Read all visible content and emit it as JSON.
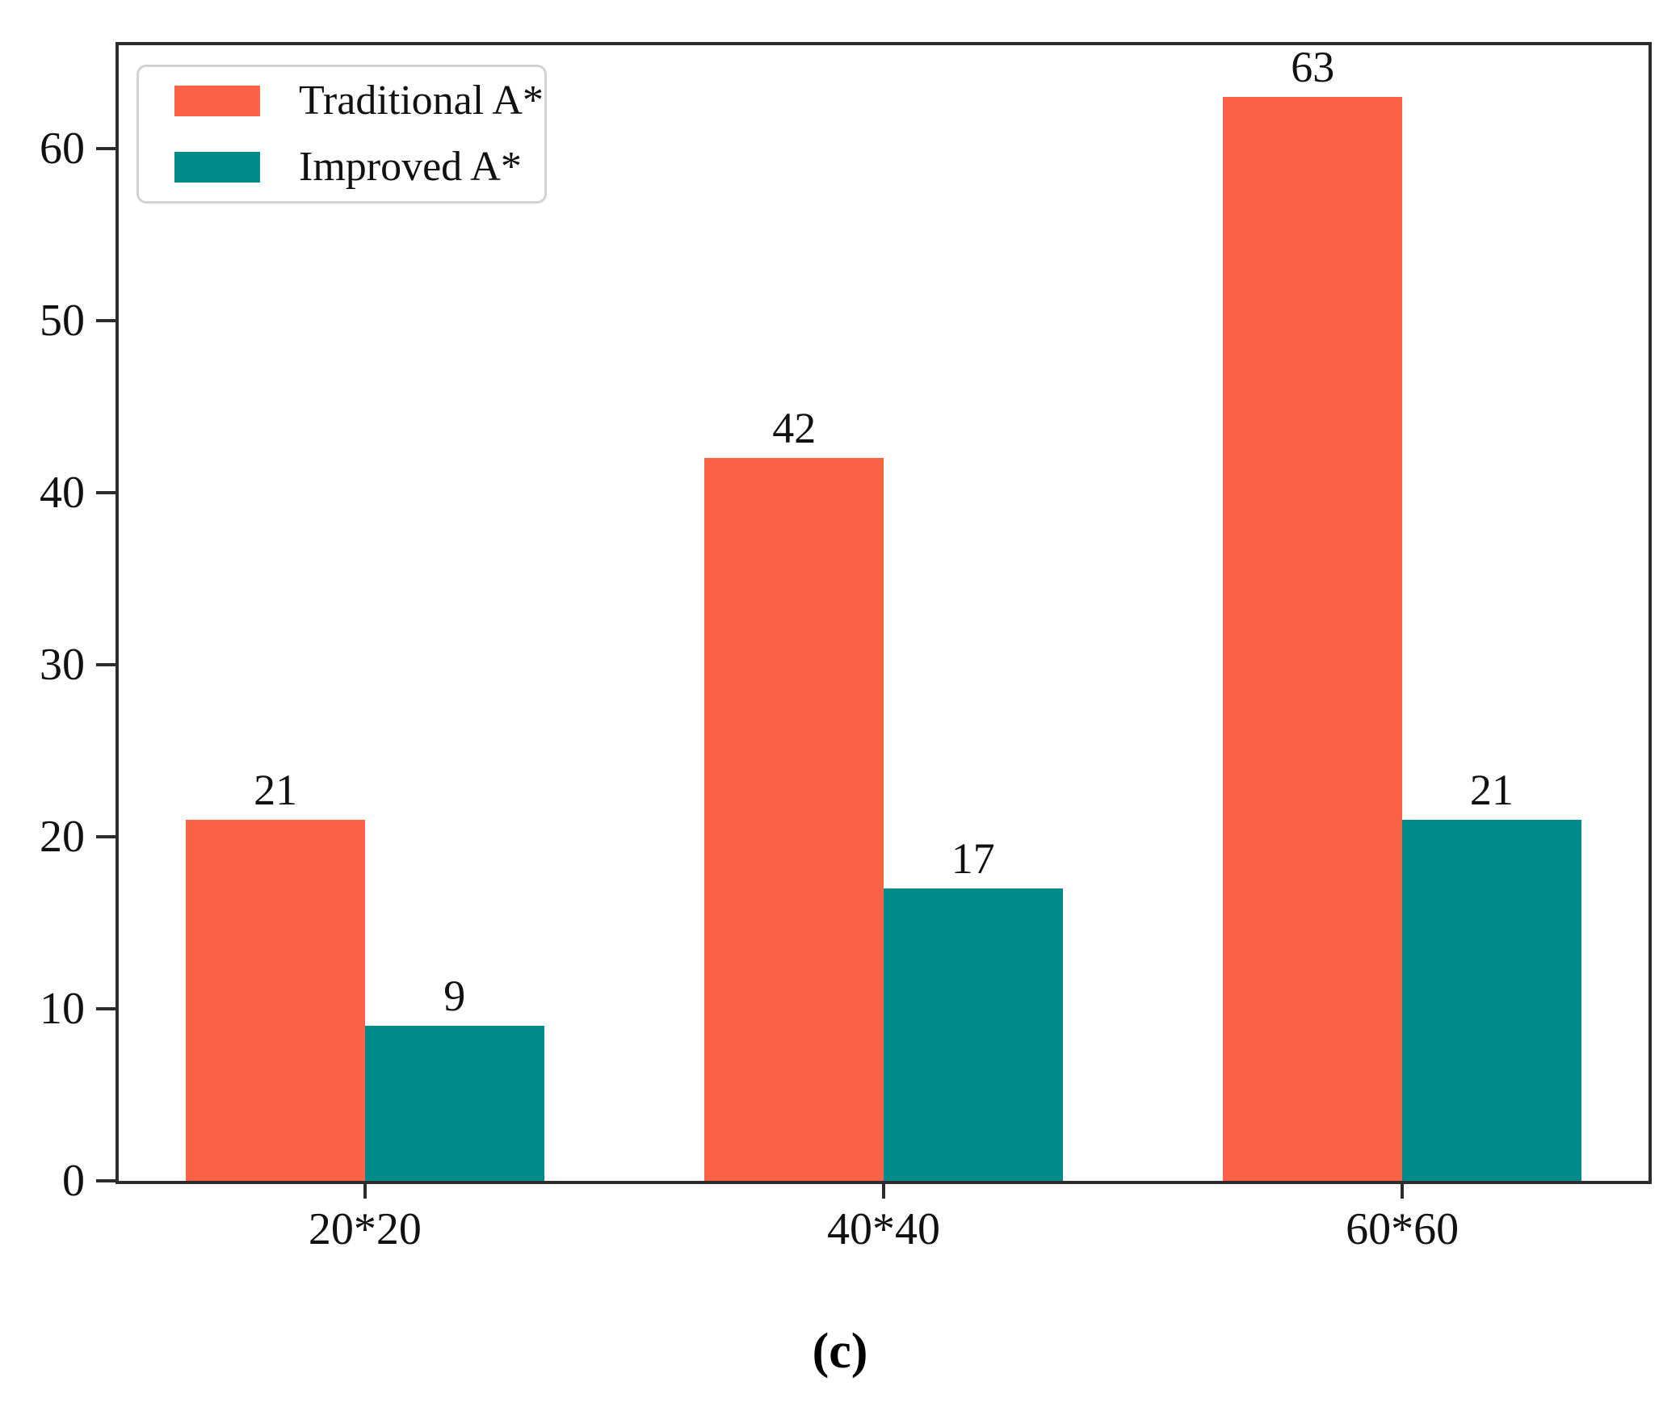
{
  "figure": {
    "caption": "(c)",
    "background_color": "#ffffff",
    "frame_color": "#2d2d2d",
    "text_color": "#111111"
  },
  "chart_data": {
    "type": "bar",
    "title": "",
    "xlabel": "",
    "ylabel": "",
    "categories": [
      "20*20",
      "40*40",
      "60*60"
    ],
    "series": [
      {
        "name": "Traditional A*",
        "color": "#FB6347",
        "values": [
          21,
          42,
          63
        ]
      },
      {
        "name": "Improved A*",
        "color": "#008B8B",
        "values": [
          9,
          17,
          21
        ]
      }
    ],
    "ylim": [
      0,
      66
    ],
    "yticks": [
      0,
      10,
      20,
      30,
      40,
      50,
      60
    ],
    "bar_value_labels": [
      [
        "21",
        "42",
        "63"
      ],
      [
        "9",
        "17",
        "21"
      ]
    ],
    "grid": false,
    "legend_position": "upper-left",
    "layout": {
      "group_centers_pct": [
        16.1,
        50.0,
        83.9
      ],
      "bar_width_pct": 11.7
    }
  }
}
